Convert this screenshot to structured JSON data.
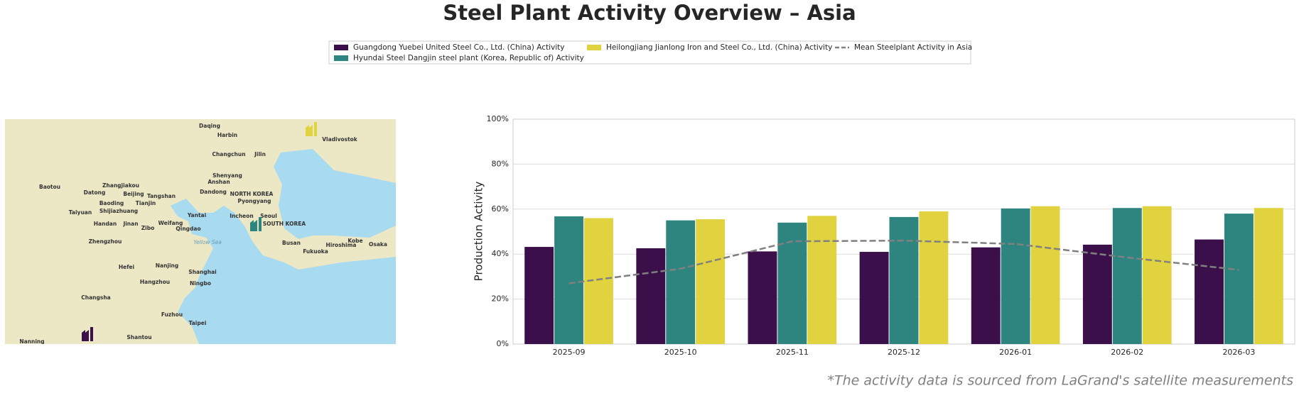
{
  "chart_data": {
    "type": "bar",
    "title": "Steel Plant Activity Overview – Asia",
    "ylabel": "Production Activity",
    "note": "*The activity data is sourced from LaGrand's satellite measurements",
    "categories": [
      "2025-09",
      "2025-10",
      "2025-11",
      "2025-12",
      "2026-01",
      "2026-02",
      "2026-03"
    ],
    "series": [
      {
        "name": "Guangdong Yuebei United Steel Co., Ltd. (China) Activity",
        "color": "#3b0f4a",
        "values": [
          43.2,
          42.6,
          41.2,
          41.0,
          43.0,
          44.2,
          46.5
        ]
      },
      {
        "name": "Hyundai Steel Dangjin steel plant (Korea, Republic of) Activity",
        "color": "#2e8580",
        "values": [
          56.8,
          55.0,
          54.0,
          56.5,
          60.3,
          60.5,
          58.0
        ]
      },
      {
        "name": "Heilongjiang Jianlong Iron and Steel Co., Ltd. (China) Activity",
        "color": "#e0d33f",
        "values": [
          56.0,
          55.5,
          57.0,
          59.0,
          61.3,
          61.3,
          60.5
        ]
      },
      {
        "name": "Mean Steelplant Activity in Asia",
        "color": "#808080",
        "kind": "line",
        "line_style": "dashed",
        "values": [
          27.0,
          33.5,
          45.7,
          46.0,
          44.5,
          38.5,
          33.0
        ]
      }
    ],
    "ylim": [
      0,
      100
    ],
    "yticks": [
      {
        "value": 0,
        "label": "0%"
      },
      {
        "value": 20,
        "label": "20%"
      },
      {
        "value": 40,
        "label": "40%"
      },
      {
        "value": 60,
        "label": "60%"
      },
      {
        "value": 80,
        "label": "80%"
      },
      {
        "value": 100,
        "label": "100%"
      }
    ],
    "grid": true
  },
  "map": {
    "labels": [
      "Daqing",
      "Harbin",
      "Changchun",
      "Jilin",
      "Vladivostok",
      "Shenyang",
      "Anshan",
      "Dandong",
      "Pyongyang",
      "NORTH KOREA",
      "Baotou",
      "Zhangjiakou",
      "Datong",
      "Beijing",
      "Tangshan",
      "Baoding",
      "Tianjin",
      "Shijiazhuang",
      "Taiyuan",
      "Handan",
      "Jinan",
      "Weifang",
      "Yantai",
      "Qingdao",
      "Zibo",
      "Incheon",
      "Seoul",
      "SOUTH KOREA",
      "Yellow Sea",
      "Zhengzhou",
      "Hefei",
      "Nanjing",
      "Shanghai",
      "Hangzhou",
      "Ningbo",
      "Changsha",
      "Fuzhou",
      "Taipei",
      "Busan",
      "Fukuoka",
      "Hiroshima",
      "Kobe",
      "Osaka",
      "Shantou",
      "Nanning"
    ]
  }
}
